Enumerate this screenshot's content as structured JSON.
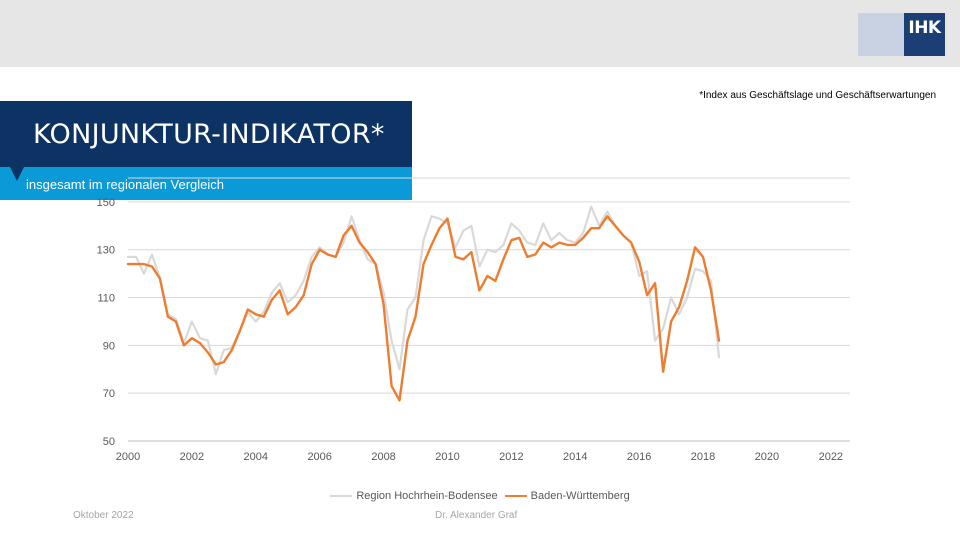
{
  "header": {
    "logo_text": "IHK",
    "footnote": "*Index aus Geschäftslage und Geschäftserwartungen"
  },
  "title": "KONJUNKTUR-INDIKATOR*",
  "subtitle": "insgesamt im regionalen Vergleich",
  "footer": {
    "date": "Oktober 2022",
    "author": "Dr. Alexander Graf"
  },
  "colors": {
    "navy": "#0d3364",
    "blue": "#0a9ad7",
    "region": "#d9d9d9",
    "bw": "#ed7d31"
  },
  "chart_data": {
    "type": "line",
    "xlabel": "",
    "ylabel": "",
    "xlim": [
      2000,
      2022.6
    ],
    "ylim": [
      50,
      160
    ],
    "y_ticks": [
      50,
      70,
      90,
      110,
      130,
      150
    ],
    "x_ticks": [
      2000,
      2002,
      2004,
      2006,
      2008,
      2010,
      2012,
      2014,
      2016,
      2018,
      2020,
      2022
    ],
    "grid": true,
    "legend_position": "bottom",
    "series": [
      {
        "name": "Region Hochrhein-Bodensee",
        "color": "#d9d9d9",
        "points": [
          [
            2000,
            127
          ],
          [
            2000.25,
            127
          ],
          [
            2000.5,
            120
          ],
          [
            2000.75,
            128
          ],
          [
            2001,
            118
          ],
          [
            2001.25,
            103
          ],
          [
            2001.5,
            101
          ],
          [
            2001.75,
            91
          ],
          [
            2002,
            100
          ],
          [
            2002.25,
            93
          ],
          [
            2002.5,
            92
          ],
          [
            2002.75,
            78
          ],
          [
            2003,
            88
          ],
          [
            2003.25,
            89
          ],
          [
            2003.5,
            96
          ],
          [
            2003.75,
            104
          ],
          [
            2004,
            100
          ],
          [
            2004.25,
            104
          ],
          [
            2004.5,
            112
          ],
          [
            2004.75,
            116
          ],
          [
            2005,
            108
          ],
          [
            2005.25,
            111
          ],
          [
            2005.5,
            117
          ],
          [
            2005.75,
            127
          ],
          [
            2006,
            131
          ],
          [
            2006.25,
            128
          ],
          [
            2006.5,
            127
          ],
          [
            2006.75,
            133
          ],
          [
            2007,
            144
          ],
          [
            2007.25,
            134
          ],
          [
            2007.5,
            126
          ],
          [
            2007.75,
            124
          ],
          [
            2008,
            112
          ],
          [
            2008.25,
            92
          ],
          [
            2008.5,
            80
          ],
          [
            2008.75,
            105
          ],
          [
            2009,
            110
          ],
          [
            2009.25,
            134
          ],
          [
            2009.5,
            144
          ],
          [
            2009.75,
            143
          ],
          [
            2010,
            141
          ],
          [
            2010.25,
            131
          ],
          [
            2010.5,
            138
          ],
          [
            2010.75,
            140
          ],
          [
            2011,
            123
          ],
          [
            2011.25,
            130
          ],
          [
            2011.5,
            129
          ],
          [
            2011.75,
            132
          ],
          [
            2012,
            141
          ],
          [
            2012.25,
            138
          ],
          [
            2012.5,
            133
          ],
          [
            2012.75,
            132
          ],
          [
            2013,
            141
          ],
          [
            2013.25,
            134
          ],
          [
            2013.5,
            137
          ],
          [
            2013.75,
            134
          ],
          [
            2014,
            133
          ],
          [
            2014.25,
            137
          ],
          [
            2014.5,
            148
          ],
          [
            2014.75,
            140
          ],
          [
            2015,
            146
          ],
          [
            2015.25,
            140
          ],
          [
            2015.5,
            136
          ],
          [
            2015.75,
            133
          ],
          [
            2016,
            119
          ],
          [
            2016.25,
            121
          ],
          [
            2016.5,
            92
          ],
          [
            2016.75,
            97
          ],
          [
            2017,
            110
          ],
          [
            2017.25,
            103
          ],
          [
            2017.5,
            110
          ],
          [
            2017.75,
            122
          ],
          [
            2018,
            121
          ],
          [
            2018.25,
            117
          ],
          [
            2018.5,
            85
          ]
        ]
      },
      {
        "name": "Baden-Württemberg",
        "color": "#ed7d31",
        "points": [
          [
            2000,
            124
          ],
          [
            2000.25,
            124
          ],
          [
            2000.5,
            124
          ],
          [
            2000.75,
            123
          ],
          [
            2001,
            118
          ],
          [
            2001.25,
            102
          ],
          [
            2001.5,
            100
          ],
          [
            2001.75,
            90
          ],
          [
            2002,
            93
          ],
          [
            2002.25,
            91
          ],
          [
            2002.5,
            87
          ],
          [
            2002.75,
            82
          ],
          [
            2003,
            83
          ],
          [
            2003.25,
            88
          ],
          [
            2003.5,
            96
          ],
          [
            2003.75,
            105
          ],
          [
            2004,
            103
          ],
          [
            2004.25,
            102
          ],
          [
            2004.5,
            109
          ],
          [
            2004.75,
            113
          ],
          [
            2005,
            103
          ],
          [
            2005.25,
            106
          ],
          [
            2005.5,
            111
          ],
          [
            2005.75,
            124
          ],
          [
            2006,
            130
          ],
          [
            2006.25,
            128
          ],
          [
            2006.5,
            127
          ],
          [
            2006.75,
            136
          ],
          [
            2007,
            140
          ],
          [
            2007.25,
            133
          ],
          [
            2007.5,
            129
          ],
          [
            2007.75,
            124
          ],
          [
            2008,
            107
          ],
          [
            2008.25,
            73
          ],
          [
            2008.5,
            67
          ],
          [
            2008.75,
            92
          ],
          [
            2009,
            102
          ],
          [
            2009.25,
            124
          ],
          [
            2009.5,
            132
          ],
          [
            2009.75,
            139
          ],
          [
            2010,
            143
          ],
          [
            2010.25,
            127
          ],
          [
            2010.5,
            126
          ],
          [
            2010.75,
            129
          ],
          [
            2011,
            113
          ],
          [
            2011.25,
            119
          ],
          [
            2011.5,
            117
          ],
          [
            2011.75,
            126
          ],
          [
            2012,
            134
          ],
          [
            2012.25,
            135
          ],
          [
            2012.5,
            127
          ],
          [
            2012.75,
            128
          ],
          [
            2013,
            133
          ],
          [
            2013.25,
            131
          ],
          [
            2013.5,
            133
          ],
          [
            2013.75,
            132
          ],
          [
            2014,
            132
          ],
          [
            2014.25,
            135
          ],
          [
            2014.5,
            139
          ],
          [
            2014.75,
            139
          ],
          [
            2015,
            144
          ],
          [
            2015.25,
            140
          ],
          [
            2015.5,
            136
          ],
          [
            2015.75,
            133
          ],
          [
            2016,
            125
          ],
          [
            2016.25,
            111
          ],
          [
            2016.5,
            116
          ],
          [
            2016.75,
            79
          ],
          [
            2017,
            100
          ],
          [
            2017.25,
            106
          ],
          [
            2017.5,
            117
          ],
          [
            2017.75,
            131
          ],
          [
            2018,
            127
          ],
          [
            2018.25,
            113
          ],
          [
            2018.5,
            92
          ]
        ]
      }
    ]
  }
}
